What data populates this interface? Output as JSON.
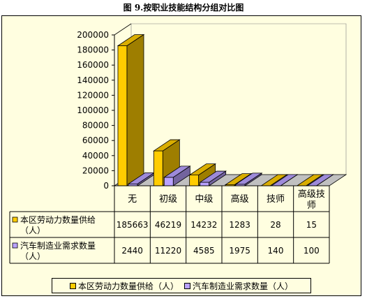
{
  "title": "图 9.按职业技能结构分组对比图",
  "colors": {
    "supply": "#ffcc00",
    "demand": "#b9a2ff",
    "floor": "#c0c0c0",
    "background": "#fffee0"
  },
  "chart_data": {
    "type": "bar",
    "title": "图 9.按职业技能结构分组对比图",
    "categories": [
      "无",
      "初级",
      "中级",
      "高级",
      "技师",
      "高级技师"
    ],
    "series": [
      {
        "name": "本区劳动力数量供给（人）",
        "values": [
          185663,
          46219,
          14232,
          1283,
          28,
          15
        ]
      },
      {
        "name": "汽车制造业需求数量（人）",
        "values": [
          2440,
          11220,
          4585,
          1975,
          140,
          100
        ]
      }
    ],
    "ylim": [
      0,
      200000
    ],
    "yticks": [
      "200000",
      "180000",
      "160000",
      "140000",
      "120000",
      "100000",
      "80000",
      "60000",
      "40000",
      "20000",
      "0"
    ],
    "grid": false,
    "legend": "bottom",
    "data_table": true,
    "table_row_labels": [
      [
        "本区劳动力数量供给",
        "（人）"
      ],
      [
        "汽车制造业需求数量",
        "（人）"
      ]
    ]
  }
}
